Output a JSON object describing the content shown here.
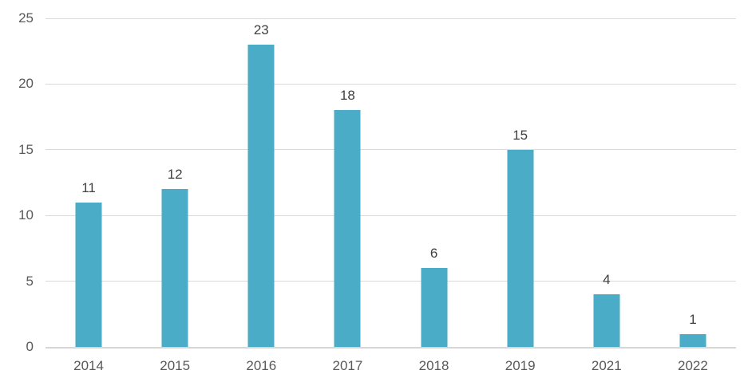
{
  "chart_data": {
    "type": "bar",
    "categories": [
      "2014",
      "2015",
      "2016",
      "2017",
      "2018",
      "2019",
      "2021",
      "2022"
    ],
    "values": [
      11,
      12,
      23,
      18,
      6,
      15,
      4,
      1
    ],
    "data_labels": [
      "11",
      "12",
      "23",
      "18",
      "6",
      "15",
      "4",
      "1"
    ],
    "title": "",
    "xlabel": "",
    "ylabel": "",
    "ylim": [
      0,
      25
    ],
    "yticks": [
      0,
      5,
      10,
      15,
      20,
      25
    ],
    "ytick_labels": [
      "0",
      "5",
      "10",
      "15",
      "20",
      "25"
    ],
    "grid": true,
    "legend": false,
    "data_labels_shown": true,
    "colors": {
      "bar_fill": "#4aacc6",
      "gridline": "#d9d9d9",
      "baseline": "#d6d6d6",
      "axis_text": "#595959",
      "data_label_text": "#404040",
      "background": "#ffffff"
    }
  }
}
